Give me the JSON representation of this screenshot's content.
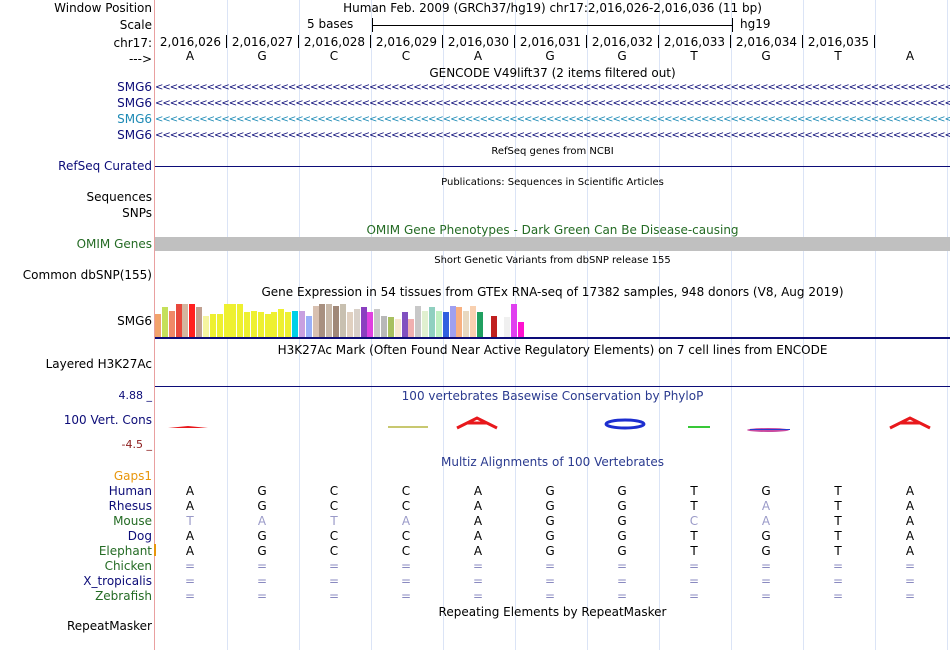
{
  "header": {
    "window_position_label": "Window Position",
    "scale_label": "Scale",
    "chrom_label": "chr17:",
    "strand_label": "--->",
    "assembly_text": "Human Feb. 2009 (GRCh37/hg19)   chr17:2,016,026-2,016,036 (11 bp)",
    "scale_text": "5 bases",
    "scale_assembly": "hg19"
  },
  "coordinates": [
    "2,016,026",
    "2,016,027",
    "2,016,028",
    "2,016,029",
    "2,016,030",
    "2,016,031",
    "2,016,032",
    "2,016,033",
    "2,016,034",
    "2,016,035"
  ],
  "bases": [
    "A",
    "G",
    "C",
    "C",
    "A",
    "G",
    "G",
    "T",
    "G",
    "T",
    "A"
  ],
  "tracks": {
    "gencode": {
      "title": "GENCODE V49lift37 (2 items filtered out)",
      "items": [
        "SMG6",
        "SMG6",
        "SMG6",
        "SMG6"
      ],
      "colors": [
        "#0c0c78",
        "#0c0c78",
        "#1d8ab5",
        "#0c0c78"
      ]
    },
    "refseq": {
      "label": "RefSeq Curated",
      "title": "RefSeq genes from NCBI"
    },
    "publications": {
      "title": "Publications: Sequences in Scientific Articles",
      "labels": [
        "Sequences",
        "SNPs"
      ]
    },
    "omim": {
      "label": "OMIM Genes",
      "title": "OMIM Gene Phenotypes - Dark Green Can Be Disease-causing"
    },
    "dbsnp": {
      "label": "Common dbSNP(155)",
      "title": "Short Genetic Variants from dbSNP release 155"
    },
    "gtex": {
      "label": "SMG6",
      "title": "Gene Expression in 54 tissues from GTEx RNA-seq of 17382 samples, 948 donors (V8, Aug 2019)",
      "values": [
        0.7,
        0.9,
        0.8,
        1,
        1,
        1,
        0.9,
        0.65,
        0.7,
        0.7,
        1,
        1,
        1,
        0.75,
        0.8,
        0.75,
        0.7,
        0.75,
        0.85,
        0.75,
        0.8,
        0.8,
        0.65,
        0.95,
        1,
        1,
        0.95,
        1,
        0.75,
        0.85,
        0.9,
        0.75,
        0.85,
        0.65,
        0.6,
        0.55,
        0.75,
        0.55,
        0.95,
        0.8,
        0.9,
        0.8,
        0.75,
        0.95,
        0.9,
        0.8,
        0.95,
        0.75,
        0.7,
        0.65,
        1,
        0.6,
        1,
        0.45
      ],
      "colors": [
        "#f2a36c",
        "#c5e05a",
        "#f08868",
        "#e8483c",
        "#d4b6a0",
        "#ff2020",
        "#c0a090",
        "#f5f5a0",
        "#eef030",
        "#eef030",
        "#eef030",
        "#eef030",
        "#eef030",
        "#eef030",
        "#eef030",
        "#eef030",
        "#eef030",
        "#eef030",
        "#eef030",
        "#eef030",
        "#00d0e8",
        "#c8a0e0",
        "#9ab0f8",
        "#d8c0b0",
        "#a89080",
        "#c8b8a8",
        "#a08878",
        "#c8c0b0",
        "#e0d0c0",
        "#d8d0c8",
        "#8a3fc0",
        "#e040e0",
        "#c8c8c8",
        "#b8b8b8",
        "#a8c060",
        "#f8e8d0",
        "#8050c0",
        "#f0b0b0",
        "#c8c8c8",
        "#e0f0d0",
        "#90d0c0",
        "#c0f0c0",
        "#3060e0",
        "#a0a0f0",
        "#f8b080",
        "#e8d8c0",
        "#f8d0b0",
        "#20a060",
        "#ffffff",
        "#c02020",
        "#ffffff",
        "#f0f0f0",
        "#e040f0",
        "#ff10d0"
      ]
    },
    "h3k27ac": {
      "label": "Layered H3K27Ac",
      "title": "H3K27Ac Mark (Often Found Near Active Regulatory Elements) on 7 cell lines from ENCODE"
    },
    "phylop": {
      "label": "100 Vert. Cons",
      "title": "100 vertebrates Basewise Conservation by PhyloP",
      "max": "4.88 _",
      "min": "-4.5 _"
    },
    "multiz": {
      "title": "Multiz Alignments of 100 Vertebrates",
      "gaps_label": "Gaps1",
      "species": [
        {
          "name": "Human",
          "color": "#0c0c78",
          "seq": [
            "A",
            "G",
            "C",
            "C",
            "A",
            "G",
            "G",
            "T",
            "G",
            "T",
            "A"
          ]
        },
        {
          "name": "Rhesus",
          "color": "#0c0c78",
          "seq": [
            "A",
            "G",
            "C",
            "C",
            "A",
            "G",
            "G",
            "T",
            "A",
            "T",
            "A"
          ]
        },
        {
          "name": "Mouse",
          "color": "#246b24",
          "seq": [
            "T",
            "A",
            "T",
            "A",
            "A",
            "G",
            "G",
            "C",
            "A",
            "T",
            "A"
          ]
        },
        {
          "name": "Dog",
          "color": "#0c0c78",
          "seq": [
            "A",
            "G",
            "C",
            "C",
            "A",
            "G",
            "G",
            "T",
            "G",
            "T",
            "A"
          ]
        },
        {
          "name": "Elephant",
          "color": "#246b24",
          "seq": [
            "A",
            "G",
            "C",
            "C",
            "A",
            "G",
            "G",
            "T",
            "G",
            "T",
            "A"
          ]
        },
        {
          "name": "Chicken",
          "color": "#246b24",
          "seq": [
            "=",
            "=",
            "=",
            "=",
            "=",
            "=",
            "=",
            "=",
            "=",
            "=",
            "="
          ]
        },
        {
          "name": "X_tropicalis",
          "color": "#0c0c78",
          "seq": [
            "=",
            "=",
            "=",
            "=",
            "=",
            "=",
            "=",
            "=",
            "=",
            "=",
            "="
          ]
        },
        {
          "name": "Zebrafish",
          "color": "#246b24",
          "seq": [
            "=",
            "=",
            "=",
            "=",
            "=",
            "=",
            "=",
            "=",
            "=",
            "=",
            "="
          ]
        }
      ]
    },
    "repeatmasker": {
      "label": "RepeatMasker",
      "title": "Repeating Elements by RepeatMasker"
    }
  },
  "colors": {
    "label_blue": "#0c0c78",
    "label_green": "#246b24",
    "label_teal": "#1d8ab5",
    "omim_bar": "#c0c0c0",
    "grid": "#dbe4f6"
  }
}
